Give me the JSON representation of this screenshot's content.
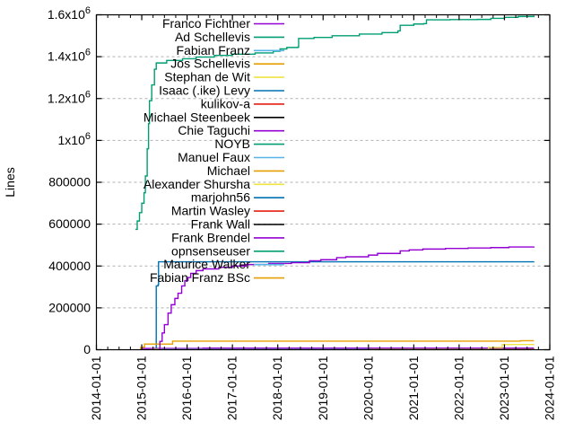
{
  "chart_data": {
    "type": "line",
    "title": "",
    "ylabel": "Lines",
    "x_range": [
      2014,
      2024
    ],
    "y_range": [
      0,
      1600000
    ],
    "grid": "horizontal-dashed",
    "grid_color": "#b0b0b0",
    "axis_color": "#000000",
    "legend_position": "top-left-inside",
    "x_ticks": [
      "2014-01-01",
      "2015-01-01",
      "2016-01-01",
      "2017-01-01",
      "2018-01-01",
      "2019-01-01",
      "2020-01-01",
      "2021-01-01",
      "2022-01-01",
      "2023-01-01",
      "2024-01-01"
    ],
    "x_minor_step_years": 0.25,
    "y_ticks": [
      {
        "value": 0,
        "label": "0"
      },
      {
        "value": 200000,
        "label": "200000"
      },
      {
        "value": 400000,
        "label": "400000"
      },
      {
        "value": 600000,
        "label": "600000"
      },
      {
        "value": 800000,
        "label": "800000"
      },
      {
        "value": 1000000,
        "label": "1x10",
        "exp": "6"
      },
      {
        "value": 1200000,
        "label": "1.2x10",
        "exp": "6"
      },
      {
        "value": 1400000,
        "label": "1.4x10",
        "exp": "6"
      },
      {
        "value": 1600000,
        "label": "1.6x10",
        "exp": "6"
      }
    ],
    "colors": {
      "purple": "#9400d3",
      "green": "#009e73",
      "sky": "#56b4e9",
      "orange": "#e69f00",
      "yellow": "#f0e442",
      "blue": "#0072b2",
      "red": "#e51e10",
      "black": "#000000"
    },
    "series": [
      {
        "name": "Franco Fichtner",
        "color": "purple",
        "points": [
          [
            2015.38,
            0
          ],
          [
            2015.4,
            40000
          ],
          [
            2015.45,
            80000
          ],
          [
            2015.5,
            120000
          ],
          [
            2015.58,
            175000
          ],
          [
            2015.65,
            215000
          ],
          [
            2015.73,
            245000
          ],
          [
            2015.8,
            270000
          ],
          [
            2015.88,
            305000
          ],
          [
            2015.95,
            330000
          ],
          [
            2016.02,
            345000
          ],
          [
            2016.08,
            365000
          ],
          [
            2016.2,
            378000
          ],
          [
            2016.35,
            386000
          ],
          [
            2016.7,
            394000
          ],
          [
            2017.0,
            400000
          ],
          [
            2017.3,
            407000
          ],
          [
            2017.8,
            412000
          ],
          [
            2018.3,
            416000
          ],
          [
            2018.7,
            425000
          ],
          [
            2018.95,
            430000
          ],
          [
            2019.3,
            440000
          ],
          [
            2019.5,
            444000
          ],
          [
            2020.0,
            452000
          ],
          [
            2020.2,
            460000
          ],
          [
            2020.7,
            472000
          ],
          [
            2020.9,
            477000
          ],
          [
            2021.2,
            481000
          ],
          [
            2021.7,
            484000
          ],
          [
            2022.2,
            486000
          ],
          [
            2022.7,
            488000
          ],
          [
            2023.1,
            491000
          ],
          [
            2023.65,
            493000
          ]
        ]
      },
      {
        "name": "Ad Schellevis",
        "color": "green",
        "points": [
          [
            2014.86,
            575000
          ],
          [
            2014.9,
            615000
          ],
          [
            2014.95,
            655000
          ],
          [
            2015.0,
            700000
          ],
          [
            2015.05,
            750000
          ],
          [
            2015.08,
            830000
          ],
          [
            2015.12,
            960000
          ],
          [
            2015.15,
            1080000
          ],
          [
            2015.17,
            1190000
          ],
          [
            2015.22,
            1265000
          ],
          [
            2015.28,
            1340000
          ],
          [
            2015.32,
            1370000
          ],
          [
            2015.55,
            1382000
          ],
          [
            2015.9,
            1390000
          ],
          [
            2016.2,
            1398000
          ],
          [
            2016.6,
            1406000
          ],
          [
            2017.0,
            1412000
          ],
          [
            2017.5,
            1418000
          ],
          [
            2017.9,
            1426000
          ],
          [
            2018.05,
            1437000
          ],
          [
            2018.2,
            1444000
          ],
          [
            2018.44,
            1445000
          ],
          [
            2018.46,
            1487000
          ],
          [
            2018.8,
            1492000
          ],
          [
            2019.2,
            1500000
          ],
          [
            2019.8,
            1508000
          ],
          [
            2020.3,
            1515000
          ],
          [
            2020.65,
            1523000
          ],
          [
            2020.7,
            1550000
          ],
          [
            2021.0,
            1556000
          ],
          [
            2021.22,
            1558000
          ],
          [
            2021.28,
            1576000
          ],
          [
            2021.8,
            1577000
          ],
          [
            2022.4,
            1578000
          ],
          [
            2022.7,
            1583000
          ],
          [
            2023.0,
            1588000
          ],
          [
            2023.3,
            1592000
          ],
          [
            2023.65,
            1596000
          ]
        ]
      },
      {
        "name": "Fabian Franz",
        "color": "sky",
        "points": [
          [
            2015.4,
            0
          ],
          [
            2015.45,
            1500
          ],
          [
            2023.65,
            2000
          ]
        ]
      },
      {
        "name": "Jos Schellevis",
        "color": "orange",
        "points": [
          [
            2014.95,
            0
          ],
          [
            2014.98,
            12000
          ],
          [
            2015.06,
            27000
          ],
          [
            2015.65,
            27000
          ],
          [
            2015.68,
            41000
          ],
          [
            2023.3,
            41000
          ],
          [
            2023.35,
            43000
          ],
          [
            2023.65,
            43000
          ]
        ]
      },
      {
        "name": "Stephan de Wit",
        "color": "yellow",
        "points": [
          [
            2015.2,
            0
          ],
          [
            2015.25,
            2000
          ],
          [
            2022.6,
            2500
          ],
          [
            2022.65,
            11000
          ],
          [
            2022.9,
            11000
          ],
          [
            2022.95,
            25000
          ],
          [
            2023.65,
            26000
          ]
        ]
      },
      {
        "name": "Isaac (.ike) Levy",
        "color": "blue",
        "points": [
          [
            2015.31,
            0
          ],
          [
            2015.32,
            305000
          ],
          [
            2015.36,
            310000
          ],
          [
            2015.37,
            420000
          ],
          [
            2023.65,
            421000
          ]
        ]
      },
      {
        "name": "kulikov-a",
        "color": "red",
        "points": [
          [
            2020.0,
            0
          ],
          [
            2020.05,
            3500
          ],
          [
            2023.65,
            4500
          ]
        ]
      },
      {
        "name": "Michael Steenbeek",
        "color": "black",
        "points": [
          [
            2017.0,
            0
          ],
          [
            2017.05,
            1500
          ],
          [
            2023.65,
            2000
          ]
        ]
      },
      {
        "name": "Chie Taguchi",
        "color": "purple",
        "points": [
          [
            2014.97,
            0
          ],
          [
            2015.0,
            6000
          ],
          [
            2016.3,
            6000
          ],
          [
            2016.35,
            7500
          ],
          [
            2023.65,
            7500
          ]
        ]
      },
      {
        "name": "NOYB",
        "color": "green",
        "points": [
          [
            2018.05,
            0
          ],
          [
            2018.1,
            2000
          ],
          [
            2023.65,
            2500
          ]
        ]
      },
      {
        "name": "Manuel Faux",
        "color": "sky",
        "points": [
          [
            2015.5,
            0
          ],
          [
            2015.55,
            1200
          ],
          [
            2023.65,
            1500
          ]
        ]
      },
      {
        "name": "Michael",
        "color": "orange",
        "points": [
          [
            2016.5,
            0
          ],
          [
            2016.55,
            1000
          ],
          [
            2023.65,
            1200
          ]
        ]
      },
      {
        "name": "Alexander Shursha",
        "color": "yellow",
        "points": [
          [
            2016.0,
            0
          ],
          [
            2016.05,
            1500
          ],
          [
            2023.65,
            1800
          ]
        ]
      },
      {
        "name": "marjohn56",
        "color": "blue",
        "points": [
          [
            2016.8,
            0
          ],
          [
            2016.85,
            2000
          ],
          [
            2023.65,
            2500
          ]
        ]
      },
      {
        "name": "Martin Wasley",
        "color": "red",
        "points": [
          [
            2017.2,
            0
          ],
          [
            2017.25,
            2500
          ],
          [
            2023.65,
            3000
          ]
        ]
      },
      {
        "name": "Frank Wall",
        "color": "black",
        "points": [
          [
            2015.9,
            0
          ],
          [
            2015.95,
            1000
          ],
          [
            2023.65,
            1200
          ]
        ]
      },
      {
        "name": "Frank Brendel",
        "color": "purple",
        "points": [
          [
            2018.5,
            0
          ],
          [
            2018.55,
            1500
          ],
          [
            2023.65,
            1700
          ]
        ]
      },
      {
        "name": "opnsenseuser",
        "color": "green",
        "points": [
          [
            2017.5,
            0
          ],
          [
            2017.55,
            800
          ],
          [
            2023.65,
            1000
          ]
        ]
      },
      {
        "name": "Maurice Walker",
        "color": "sky",
        "points": [
          [
            2019.0,
            0
          ],
          [
            2019.05,
            900
          ],
          [
            2023.65,
            1000
          ]
        ]
      },
      {
        "name": "Fabian Franz BSc",
        "color": "orange",
        "points": [
          [
            2021.5,
            0
          ],
          [
            2021.55,
            700
          ],
          [
            2023.65,
            800
          ]
        ]
      }
    ]
  }
}
